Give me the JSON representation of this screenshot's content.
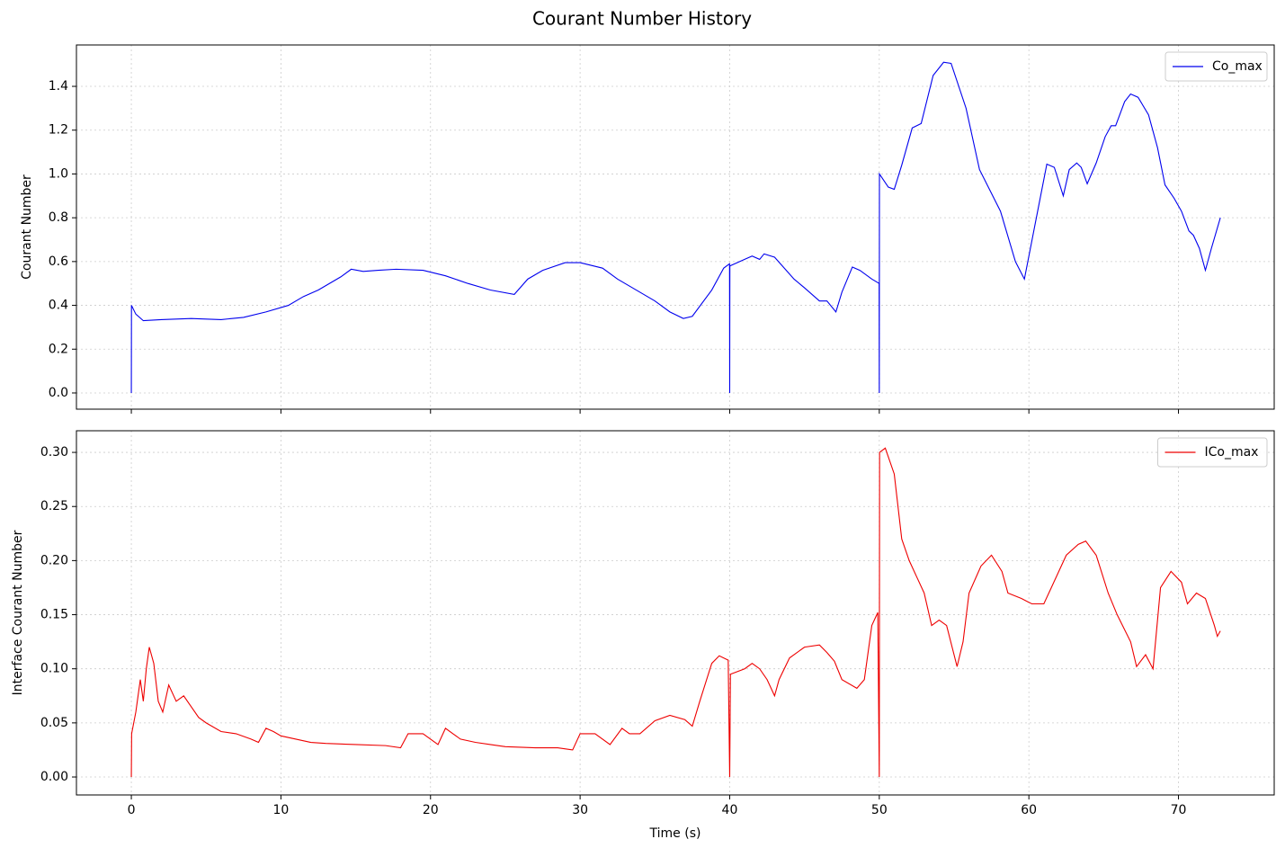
{
  "title": "Courant Number History",
  "chart_data": [
    {
      "type": "line",
      "ylabel": "Courant Number",
      "grid": true,
      "legend": "upper right",
      "xtick_labels": false,
      "xlim": [
        -3.67,
        76.4
      ],
      "xticks": [
        0,
        10,
        20,
        30,
        40,
        50,
        60,
        70
      ],
      "ylim": [
        -0.074,
        1.589
      ],
      "yticks": [
        {
          "value": 0,
          "label": "0.0"
        },
        {
          "value": 0.2,
          "label": "0.2"
        },
        {
          "value": 0.4,
          "label": "0.4"
        },
        {
          "value": 0.6,
          "label": "0.6"
        },
        {
          "value": 0.8,
          "label": "0.8"
        },
        {
          "value": 1.0,
          "label": "1.0"
        },
        {
          "value": 1.2,
          "label": "1.2"
        },
        {
          "value": 1.4,
          "label": "1.4"
        }
      ],
      "x": [
        0,
        0.01,
        0.3,
        0.8,
        2,
        4,
        6,
        7.5,
        9,
        10.5,
        11.5,
        12.5,
        14,
        14.7,
        15.5,
        16.5,
        17.7,
        19.5,
        21,
        22.5,
        24,
        25.6,
        26.5,
        27.5,
        29,
        30,
        31.5,
        32.5,
        34,
        35,
        36,
        36.9,
        37.5,
        38.8,
        39.6,
        39.99,
        40,
        40.01,
        41,
        41.5,
        42,
        42.3,
        43,
        44.3,
        45,
        46,
        46.5,
        47.1,
        47.5,
        48.2,
        48.7,
        49.5,
        49.99,
        50,
        50.01,
        50.6,
        51,
        51.5,
        52.2,
        52.8,
        53.6,
        54.3,
        54.8,
        55.8,
        56.7,
        58.1,
        59.1,
        59.7,
        60.5,
        61.2,
        61.7,
        62.3,
        62.7,
        63.2,
        63.5,
        63.9,
        64.5,
        65.1,
        65.5,
        65.8,
        66.4,
        66.8,
        67.3,
        68,
        68.6,
        69.1,
        69.7,
        70.2,
        70.7,
        71,
        71.4,
        71.8,
        72.2,
        72.8
      ],
      "series": [
        {
          "name": "Co_max",
          "color": "#0000ee",
          "values": [
            0,
            0.4,
            0.36,
            0.33,
            0.335,
            0.34,
            0.335,
            0.345,
            0.37,
            0.4,
            0.44,
            0.47,
            0.53,
            0.565,
            0.555,
            0.56,
            0.565,
            0.56,
            0.535,
            0.5,
            0.47,
            0.45,
            0.52,
            0.56,
            0.595,
            0.595,
            0.57,
            0.52,
            0.46,
            0.42,
            0.37,
            0.34,
            0.35,
            0.47,
            0.57,
            0.59,
            0,
            0.58,
            0.61,
            0.625,
            0.61,
            0.635,
            0.62,
            0.52,
            0.48,
            0.42,
            0.42,
            0.37,
            0.46,
            0.575,
            0.56,
            0.52,
            0.5,
            0,
            1.0,
            0.94,
            0.93,
            1.04,
            1.21,
            1.23,
            1.45,
            1.51,
            1.505,
            1.3,
            1.02,
            0.83,
            0.6,
            0.52,
            0.8,
            1.045,
            1.03,
            0.9,
            1.02,
            1.05,
            1.03,
            0.955,
            1.05,
            1.17,
            1.22,
            1.22,
            1.33,
            1.365,
            1.35,
            1.27,
            1.12,
            0.95,
            0.89,
            0.83,
            0.74,
            0.72,
            0.66,
            0.56,
            0.66,
            0.8
          ]
        }
      ]
    },
    {
      "type": "line",
      "xlabel": "Time (s)",
      "ylabel": "Interface Courant Number",
      "grid": true,
      "legend": "upper right",
      "xtick_labels": true,
      "xlim": [
        -3.67,
        76.4
      ],
      "xticks": [
        0,
        10,
        20,
        30,
        40,
        50,
        60,
        70
      ],
      "ylim": [
        -0.0166,
        0.32
      ],
      "yticks": [
        {
          "value": 0,
          "label": "0.00"
        },
        0.05,
        {
          "value": 0.1,
          "label": "0.10"
        },
        0.15,
        {
          "value": 0.2,
          "label": "0.20"
        },
        0.25,
        {
          "value": 0.3,
          "label": "0.30"
        }
      ],
      "x": [
        0,
        0.02,
        0.3,
        0.6,
        0.8,
        1.0,
        1.2,
        1.5,
        1.8,
        2.1,
        2.5,
        3,
        3.5,
        4,
        4.5,
        5,
        6,
        7,
        8,
        8.5,
        9,
        9.5,
        10,
        11,
        12,
        13,
        15,
        17,
        18,
        18.5,
        19.5,
        20,
        20.5,
        21,
        21.5,
        22,
        23,
        24,
        25,
        27,
        28.5,
        29.5,
        30,
        31,
        32,
        32.8,
        33.3,
        34,
        35,
        36,
        37,
        37.5,
        38,
        38.8,
        39.3,
        39.9,
        40,
        40.05,
        41,
        41.5,
        42,
        42.5,
        43,
        43.3,
        44,
        45,
        46,
        46.5,
        47,
        47.5,
        48.5,
        49,
        49.5,
        49.9,
        50,
        50.02,
        50.4,
        51,
        51.5,
        52,
        52.5,
        53,
        53.5,
        54,
        54.5,
        55.2,
        55.6,
        56,
        56.8,
        57.5,
        58.2,
        58.6,
        59.5,
        60.2,
        61,
        61.5,
        62.5,
        63.3,
        63.8,
        64.5,
        65.3,
        65.9,
        66.8,
        67.2,
        67.8,
        68.3,
        68.5,
        68.8,
        69.5,
        70.2,
        70.6,
        71.2,
        71.8,
        72.4,
        72.6,
        72.8
      ],
      "series": [
        {
          "name": "ICo_max",
          "color": "#ee0000",
          "values": [
            0,
            0.04,
            0.06,
            0.09,
            0.07,
            0.1,
            0.12,
            0.105,
            0.07,
            0.06,
            0.085,
            0.07,
            0.075,
            0.065,
            0.055,
            0.05,
            0.042,
            0.04,
            0.035,
            0.032,
            0.045,
            0.042,
            0.038,
            0.035,
            0.032,
            0.031,
            0.03,
            0.029,
            0.027,
            0.04,
            0.04,
            0.035,
            0.03,
            0.045,
            0.04,
            0.035,
            0.032,
            0.03,
            0.028,
            0.027,
            0.027,
            0.025,
            0.04,
            0.04,
            0.03,
            0.045,
            0.04,
            0.04,
            0.052,
            0.057,
            0.053,
            0.047,
            0.07,
            0.105,
            0.112,
            0.108,
            0,
            0.095,
            0.1,
            0.105,
            0.1,
            0.09,
            0.075,
            0.09,
            0.11,
            0.12,
            0.122,
            0.115,
            0.107,
            0.09,
            0.082,
            0.09,
            0.14,
            0.152,
            0,
            0.3,
            0.304,
            0.28,
            0.22,
            0.2,
            0.185,
            0.17,
            0.14,
            0.145,
            0.14,
            0.102,
            0.125,
            0.17,
            0.195,
            0.205,
            0.19,
            0.17,
            0.165,
            0.16,
            0.16,
            0.175,
            0.205,
            0.215,
            0.218,
            0.205,
            0.17,
            0.15,
            0.125,
            0.102,
            0.113,
            0.1,
            0.13,
            0.175,
            0.19,
            0.18,
            0.16,
            0.17,
            0.165,
            0.14,
            0.13,
            0.135
          ]
        }
      ]
    }
  ]
}
